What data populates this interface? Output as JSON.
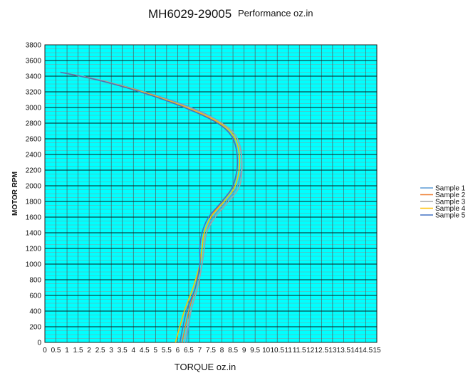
{
  "chart_data": {
    "type": "line",
    "title": "MH6029-29005",
    "subtitle": "Performance oz.in",
    "xlabel": "TORQUE  oz.in",
    "ylabel": "MOTOR RPM",
    "xlim": [
      0,
      15
    ],
    "ylim": [
      0,
      3800
    ],
    "x_ticks": [
      "0",
      "0.5",
      "1",
      "1.5",
      "2",
      "2.5",
      "3",
      "3.5",
      "4",
      "4.5",
      "5",
      "5.5",
      "6",
      "6.5",
      "7",
      "7.5",
      "8",
      "8.5",
      "9",
      "9.5",
      "10",
      "10.5",
      "11",
      "11.5",
      "12",
      "12.5",
      "13",
      "13.5",
      "14",
      "14.5",
      "15"
    ],
    "y_ticks": [
      "0",
      "200",
      "400",
      "600",
      "800",
      "1000",
      "1200",
      "1400",
      "1600",
      "1800",
      "2000",
      "2200",
      "2400",
      "2600",
      "2800",
      "3000",
      "3200",
      "3400",
      "3600",
      "3800"
    ],
    "grid": true,
    "legend_position": "right",
    "series": [
      {
        "name": "Sample 1",
        "color": "#5b9bd5",
        "x": [
          6.4,
          6.6,
          6.9,
          7.1,
          7.2,
          7.3,
          7.6,
          8.2,
          8.7,
          8.9,
          8.7,
          8.0,
          6.6,
          4.5,
          2.5,
          0.7
        ],
        "y": [
          0,
          400,
          700,
          1000,
          1200,
          1400,
          1600,
          1800,
          2000,
          2300,
          2600,
          2800,
          3000,
          3200,
          3350,
          3450
        ]
      },
      {
        "name": "Sample 2",
        "color": "#ed7d31",
        "x": [
          6.2,
          6.5,
          6.8,
          7.0,
          7.1,
          7.2,
          7.5,
          8.0,
          8.5,
          8.7,
          8.5,
          7.8,
          6.4,
          4.3,
          2.4,
          0.7
        ],
        "y": [
          0,
          400,
          700,
          1000,
          1200,
          1400,
          1600,
          1800,
          2000,
          2300,
          2600,
          2800,
          3000,
          3200,
          3350,
          3450
        ]
      },
      {
        "name": "Sample 3",
        "color": "#a5a5a5",
        "x": [
          6.3,
          6.6,
          6.9,
          7.1,
          7.2,
          7.3,
          7.7,
          8.3,
          8.8,
          8.9,
          8.7,
          8.0,
          6.5,
          4.4,
          2.5,
          0.7
        ],
        "y": [
          0,
          400,
          700,
          1000,
          1200,
          1400,
          1600,
          1800,
          2000,
          2300,
          2600,
          2800,
          3000,
          3200,
          3350,
          3450
        ]
      },
      {
        "name": "Sample 4",
        "color": "#ffc000",
        "x": [
          5.9,
          6.3,
          6.7,
          7.0,
          7.1,
          7.2,
          7.5,
          8.1,
          8.6,
          8.8,
          8.6,
          7.9,
          6.4,
          4.4,
          2.4,
          0.7
        ],
        "y": [
          0,
          400,
          700,
          1000,
          1200,
          1400,
          1600,
          1800,
          2000,
          2300,
          2600,
          2800,
          3000,
          3200,
          3350,
          3450
        ]
      },
      {
        "name": "Sample 5",
        "color": "#4472c4",
        "x": [
          6.1,
          6.4,
          6.8,
          7.0,
          7.0,
          7.1,
          7.4,
          8.0,
          8.5,
          8.7,
          8.5,
          7.8,
          6.3,
          4.3,
          2.4,
          0.7
        ],
        "y": [
          0,
          400,
          700,
          1000,
          1200,
          1400,
          1600,
          1800,
          2000,
          2300,
          2600,
          2800,
          3000,
          3200,
          3350,
          3450
        ]
      }
    ]
  }
}
